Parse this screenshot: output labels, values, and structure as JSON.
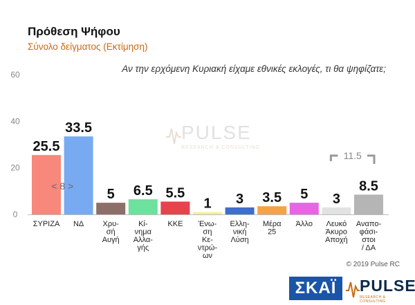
{
  "header": {
    "title": "Πρόθεση Ψήφου",
    "subtitle": "Σύνολο δείγματος   (Εκτίμηση)",
    "question": "Αν την ερχόμενη Κυριακή είχαμε εθνικές εκλογές, τι θα ψηφίζατε;"
  },
  "chart_data": {
    "type": "bar",
    "title": "Πρόθεση Ψήφου",
    "subtitle": "Σύνολο δείγματος   (Εκτίμηση)",
    "ylim": [
      0,
      60
    ],
    "yticks": [
      "0",
      "20",
      "40",
      "60"
    ],
    "grid": false,
    "categories": [
      [
        "ΣΥΡΙΖΑ"
      ],
      [
        "ΝΔ"
      ],
      [
        "Χρυ-",
        "σή",
        "Αυγή"
      ],
      [
        "Κί-",
        "νημα",
        "Αλλα-",
        "γής"
      ],
      [
        "ΚΚΕ"
      ],
      [
        "Ένω-",
        "ση",
        "Κε-",
        "ντρώ-",
        "ων"
      ],
      [
        "Ελλη-",
        "νική",
        "Λύση"
      ],
      [
        "Μέρα",
        "25"
      ],
      [
        "Άλλο"
      ],
      [
        "Λευκό",
        "Άκυρο",
        "Αποχή"
      ],
      [
        "Αναπο-",
        "φάσι-",
        "στοι",
        "/ ΔΑ"
      ]
    ],
    "values": [
      25.5,
      33.5,
      5,
      6.5,
      5.5,
      1,
      3,
      3.5,
      5,
      3,
      8.5
    ],
    "value_labels": [
      "25.5",
      "33.5",
      "5",
      "6.5",
      "5.5",
      "1",
      "3",
      "3.5",
      "5",
      "3",
      "8.5"
    ],
    "colors": [
      "#f8877c",
      "#78aaf2",
      "#8c6f68",
      "#6ee19f",
      "#e6434a",
      "#f1f19a",
      "#3e6fc9",
      "#f3a445",
      "#e765e2",
      "#e2e2e2",
      "#b5b5b5"
    ],
    "annotations": [
      {
        "text": "< 8 >",
        "between": [
          "ΣΥΡΙΖΑ",
          "ΝΔ"
        ]
      },
      {
        "text": "11.5",
        "bracket": [
          "Λευκό",
          "Αναπο-"
        ]
      }
    ]
  },
  "footer": {
    "copyright": "© 2019 Pulse RC"
  },
  "logos": {
    "skai": "ΣΚΑΪ",
    "pulse_word": "PULSE",
    "pulse_tag": "RESEARCH & CONSULTING",
    "watermark_word": "PULSE",
    "watermark_tag": "RESEARCH & CONSULTING"
  }
}
